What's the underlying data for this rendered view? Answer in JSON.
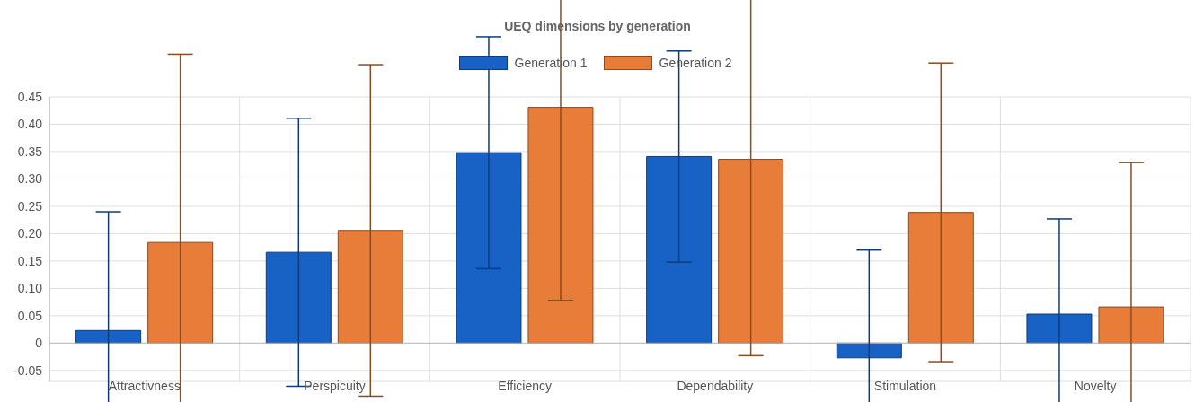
{
  "chart_data": {
    "type": "bar",
    "title": "UEQ dimensions by generation",
    "categories": [
      "Attractivness",
      "Perspicuity",
      "Efficiency",
      "Dependability",
      "Stimulation",
      "Novelty"
    ],
    "series": [
      {
        "name": "Generation 1",
        "color": "#1862c6",
        "values": [
          0.023,
          0.166,
          0.348,
          0.341,
          -0.027,
          0.053
        ],
        "errors": [
          0.217,
          0.245,
          0.212,
          0.193,
          0.197,
          0.174
        ]
      },
      {
        "name": "Generation 2",
        "color": "#e87d3a",
        "values": [
          0.184,
          0.206,
          0.431,
          0.336,
          0.239,
          0.066
        ],
        "errors": [
          0.344,
          0.303,
          0.353,
          0.359,
          0.273,
          0.264
        ]
      }
    ],
    "ylim": [
      -0.07,
      0.45
    ],
    "yticks": [
      {
        "value": -0.05,
        "label": "-0.05"
      },
      0,
      {
        "value": 0.05,
        "label": "0.05"
      },
      {
        "value": 0.1,
        "label": "0.10"
      },
      {
        "value": 0.15,
        "label": "0.15"
      },
      {
        "value": 0.2,
        "label": "0.20"
      },
      {
        "value": 0.25,
        "label": "0.25"
      },
      {
        "value": 0.3,
        "label": "0.30"
      },
      {
        "value": 0.35,
        "label": "0.35"
      },
      {
        "value": 0.4,
        "label": "0.40"
      },
      {
        "value": 0.45,
        "label": "0.45"
      }
    ],
    "grid": true,
    "legend": "top"
  }
}
